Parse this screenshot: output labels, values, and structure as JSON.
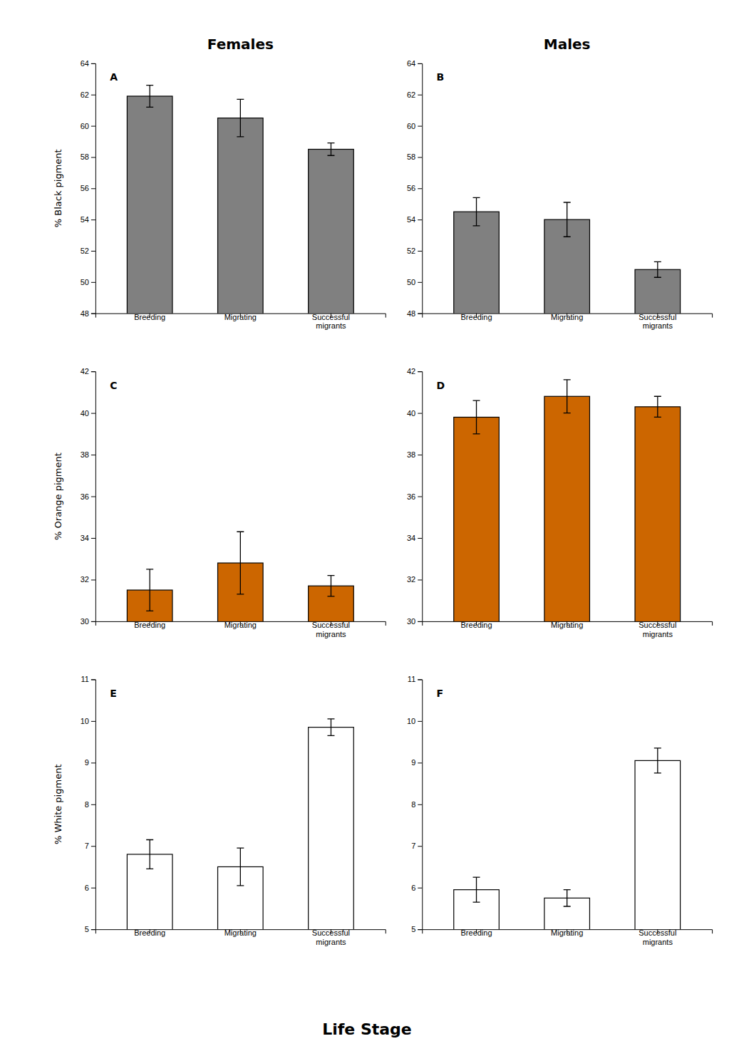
{
  "chart_data": [
    {
      "type": "bar",
      "title": "Females",
      "ylabel": "% Black pigment",
      "annotations": [
        "A"
      ],
      "categories": [
        "Breeding",
        "Migrating",
        "Successful\nmigrants"
      ],
      "values": [
        61.9,
        60.5,
        58.5
      ],
      "errors": [
        0.7,
        1.2,
        0.4
      ],
      "color": "#808080",
      "ylim": [
        48,
        64
      ],
      "yticks": [
        48,
        50,
        52,
        54,
        56,
        58,
        60,
        62,
        64
      ],
      "grid": false
    },
    {
      "type": "bar",
      "title": "Males",
      "annotations": [
        "B"
      ],
      "categories": [
        "Breeding",
        "Migrating",
        "Successful\nmigrants"
      ],
      "values": [
        54.5,
        54.0,
        50.8
      ],
      "errors": [
        0.9,
        1.1,
        0.5
      ],
      "color": "#808080",
      "ylim": [
        48,
        64
      ],
      "yticks": [
        48,
        50,
        52,
        54,
        56,
        58,
        60,
        62,
        64
      ],
      "grid": false
    },
    {
      "type": "bar",
      "ylabel": "% Orange pigment",
      "annotations": [
        "C"
      ],
      "categories": [
        "Breeding",
        "Migrating",
        "Successful\nmigrants"
      ],
      "values": [
        31.5,
        32.8,
        31.7
      ],
      "errors": [
        1.0,
        1.5,
        0.5
      ],
      "color": "#CC6600",
      "ylim": [
        30,
        42
      ],
      "yticks": [
        30,
        32,
        34,
        36,
        38,
        40,
        42
      ],
      "grid": false
    },
    {
      "type": "bar",
      "annotations": [
        "D"
      ],
      "categories": [
        "Breeding",
        "Migrating",
        "Successful\nmigrants"
      ],
      "values": [
        39.8,
        40.8,
        40.3
      ],
      "errors": [
        0.8,
        0.8,
        0.5
      ],
      "color": "#CC6600",
      "ylim": [
        30,
        42
      ],
      "yticks": [
        30,
        32,
        34,
        36,
        38,
        40,
        42
      ],
      "grid": false
    },
    {
      "type": "bar",
      "ylabel": "% White pigment",
      "xlabel": "Life Stage",
      "annotations": [
        "E"
      ],
      "categories": [
        "Breeding",
        "Migrating",
        "Successful\nmigrants"
      ],
      "values": [
        6.8,
        6.5,
        9.85
      ],
      "errors": [
        0.35,
        0.45,
        0.2
      ],
      "color": "#FFFFFF",
      "ylim": [
        5,
        11
      ],
      "yticks": [
        5,
        6,
        7,
        8,
        9,
        10,
        11
      ],
      "grid": false
    },
    {
      "type": "bar",
      "annotations": [
        "F"
      ],
      "categories": [
        "Breeding",
        "Migrating",
        "Successful\nmigrants"
      ],
      "values": [
        5.95,
        5.75,
        9.05
      ],
      "errors": [
        0.3,
        0.2,
        0.3
      ],
      "color": "#FFFFFF",
      "ylim": [
        5,
        11
      ],
      "yticks": [
        5,
        6,
        7,
        8,
        9,
        10,
        11
      ],
      "grid": false
    }
  ]
}
